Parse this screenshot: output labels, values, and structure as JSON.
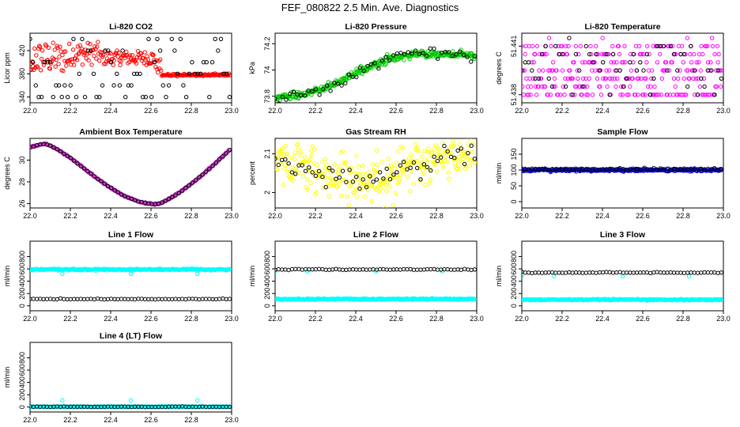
{
  "page_title": "FEF_080822  2.5 Min. Ave. Diagnostics",
  "chart_data": [
    {
      "id": "co2",
      "type": "scatter",
      "title": "Li-820 CO2",
      "ylabel": "Licor ppm",
      "xlim": [
        22.0,
        23.0
      ],
      "ylim": [
        330,
        450
      ],
      "xticks": [
        22.0,
        22.2,
        22.4,
        22.6,
        22.8,
        23.0
      ],
      "yticks": [
        340,
        380,
        420
      ],
      "series": [
        {
          "color": "#ff0000",
          "gen": "co2",
          "n": 260
        },
        {
          "color": "#000000",
          "gen": "co2b",
          "n": 70
        }
      ]
    },
    {
      "id": "pressure",
      "type": "scatter",
      "title": "Li-820 Pressure",
      "ylabel": "kPa",
      "xlim": [
        22.0,
        23.0
      ],
      "ylim": [
        73.75,
        74.28
      ],
      "xticks": [
        22.0,
        22.2,
        22.4,
        22.6,
        22.8,
        23.0
      ],
      "yticks": [
        73.8,
        74.0,
        74.2
      ],
      "series": [
        {
          "color": "#00cc00",
          "gen": "pressure",
          "n": 320,
          "noise": 0.012
        },
        {
          "color": "#000000",
          "gen": "pressure",
          "n": 55,
          "noise": 0.02
        }
      ]
    },
    {
      "id": "licor-temp",
      "type": "scatter",
      "title": "Li-820 Temperature",
      "ylabel": "degrees C",
      "xlim": [
        22.0,
        23.0
      ],
      "ylim": [
        51.4375,
        51.4418
      ],
      "xticks": [
        22.0,
        22.2,
        22.4,
        22.6,
        22.8,
        23.0
      ],
      "yticks": [
        51.438,
        51.441
      ],
      "series": [
        {
          "color": "#ff00ff",
          "gen": "ltemp",
          "n": 300
        },
        {
          "color": "#000000",
          "gen": "ltemp",
          "n": 60
        }
      ]
    },
    {
      "id": "box-temp",
      "type": "scatter",
      "title": "Ambient Box Temperature",
      "ylabel": "degrees C",
      "xlim": [
        22.0,
        23.0
      ],
      "ylim": [
        25.6,
        32.0
      ],
      "xticks": [
        22.0,
        22.2,
        22.4,
        22.6,
        22.8,
        23.0
      ],
      "yticks": [
        26,
        28,
        30
      ],
      "series": [
        {
          "color": "#cc33cc",
          "gen": "boxtemp",
          "n": 300,
          "noise": 0.03
        },
        {
          "color": "#000000",
          "gen": "boxtemp",
          "n": 60,
          "noise": 0.02
        }
      ]
    },
    {
      "id": "rh",
      "type": "scatter",
      "title": "Gas Stream RH",
      "ylabel": "percent",
      "xlim": [
        22.0,
        23.0
      ],
      "ylim": [
        1.96,
        2.14
      ],
      "xticks": [
        22.0,
        22.2,
        22.4,
        22.6,
        22.8,
        23.0
      ],
      "yticks": [
        2.0,
        2.1
      ],
      "series": [
        {
          "color": "#ffff00",
          "gen": "rh",
          "n": 320,
          "noise": 0.03
        },
        {
          "color": "#000000",
          "gen": "rh",
          "n": 60,
          "noise": 0.015
        }
      ]
    },
    {
      "id": "sample-flow",
      "type": "scatter",
      "title": "Sample Flow",
      "ylabel": "ml/min",
      "xlim": [
        22.0,
        23.0
      ],
      "ylim": [
        -20,
        200
      ],
      "xticks": [
        22.0,
        22.2,
        22.4,
        22.6,
        22.8,
        23.0
      ],
      "yticks": [
        0,
        50,
        100,
        150
      ],
      "series": [
        {
          "color": "#0000cc",
          "gen": "flat",
          "level": 100,
          "n": 320,
          "noise": 2
        },
        {
          "color": "#000000",
          "gen": "flat",
          "level": 102,
          "n": 60,
          "noise": 2
        }
      ]
    },
    {
      "id": "line1",
      "type": "scatter",
      "title": "Line 1 Flow",
      "ylabel": "ml/min",
      "xlim": [
        22.0,
        23.0
      ],
      "ylim": [
        -80,
        1050
      ],
      "xticks": [
        22.0,
        22.2,
        22.4,
        22.6,
        22.8,
        23.0
      ],
      "yticks": [
        0,
        200,
        400,
        600,
        800
      ],
      "series": [
        {
          "color": "#00ffff",
          "gen": "flat",
          "level": 590,
          "n": 320,
          "noise": 6,
          "dips": [
            22.16,
            22.5,
            22.83
          ],
          "dip_value": 520
        },
        {
          "color": "#000000",
          "gen": "flat",
          "level": 110,
          "n": 60,
          "noise": 3
        }
      ]
    },
    {
      "id": "line2",
      "type": "scatter",
      "title": "Line 2 Flow",
      "ylabel": "ml/min",
      "xlim": [
        22.0,
        23.0
      ],
      "ylim": [
        -80,
        1050
      ],
      "xticks": [
        22.0,
        22.2,
        22.4,
        22.6,
        22.8,
        23.0
      ],
      "yticks": [
        0,
        200,
        400,
        600,
        800
      ],
      "series": [
        {
          "color": "#00ffff",
          "gen": "flat",
          "level": 110,
          "n": 320,
          "noise": 5,
          "dips": [
            22.0,
            22.16,
            22.5,
            22.83
          ],
          "dip_value": 560
        },
        {
          "color": "#000000",
          "gen": "flat",
          "level": 590,
          "n": 60,
          "noise": 4
        }
      ]
    },
    {
      "id": "line3",
      "type": "scatter",
      "title": "Line 3 Flow",
      "ylabel": "ml/min",
      "xlim": [
        22.0,
        23.0
      ],
      "ylim": [
        -80,
        1050
      ],
      "xticks": [
        22.0,
        22.2,
        22.4,
        22.6,
        22.8,
        23.0
      ],
      "yticks": [
        0,
        200,
        400,
        600,
        800
      ],
      "series": [
        {
          "color": "#00ffff",
          "gen": "flat",
          "level": 100,
          "n": 320,
          "noise": 5,
          "dips": [
            22.0,
            22.16,
            22.5,
            22.83
          ],
          "dip_value": 480
        },
        {
          "color": "#000000",
          "gen": "flat",
          "level": 540,
          "n": 60,
          "noise": 4
        }
      ]
    },
    {
      "id": "line4",
      "type": "scatter",
      "title": "Line 4 (LT) Flow",
      "ylabel": "ml/min",
      "xlim": [
        22.0,
        23.0
      ],
      "ylim": [
        -80,
        1050
      ],
      "xticks": [
        22.0,
        22.2,
        22.4,
        22.6,
        22.8,
        23.0
      ],
      "yticks": [
        0,
        200,
        400,
        600,
        800
      ],
      "series": [
        {
          "color": "#00ffff",
          "gen": "flat",
          "level": 5,
          "n": 320,
          "noise": 3,
          "dips": [
            22.16,
            22.5,
            22.83
          ],
          "dip_value": 110
        },
        {
          "color": "#000000",
          "gen": "flat",
          "level": 5,
          "n": 60,
          "noise": 2
        }
      ]
    }
  ]
}
